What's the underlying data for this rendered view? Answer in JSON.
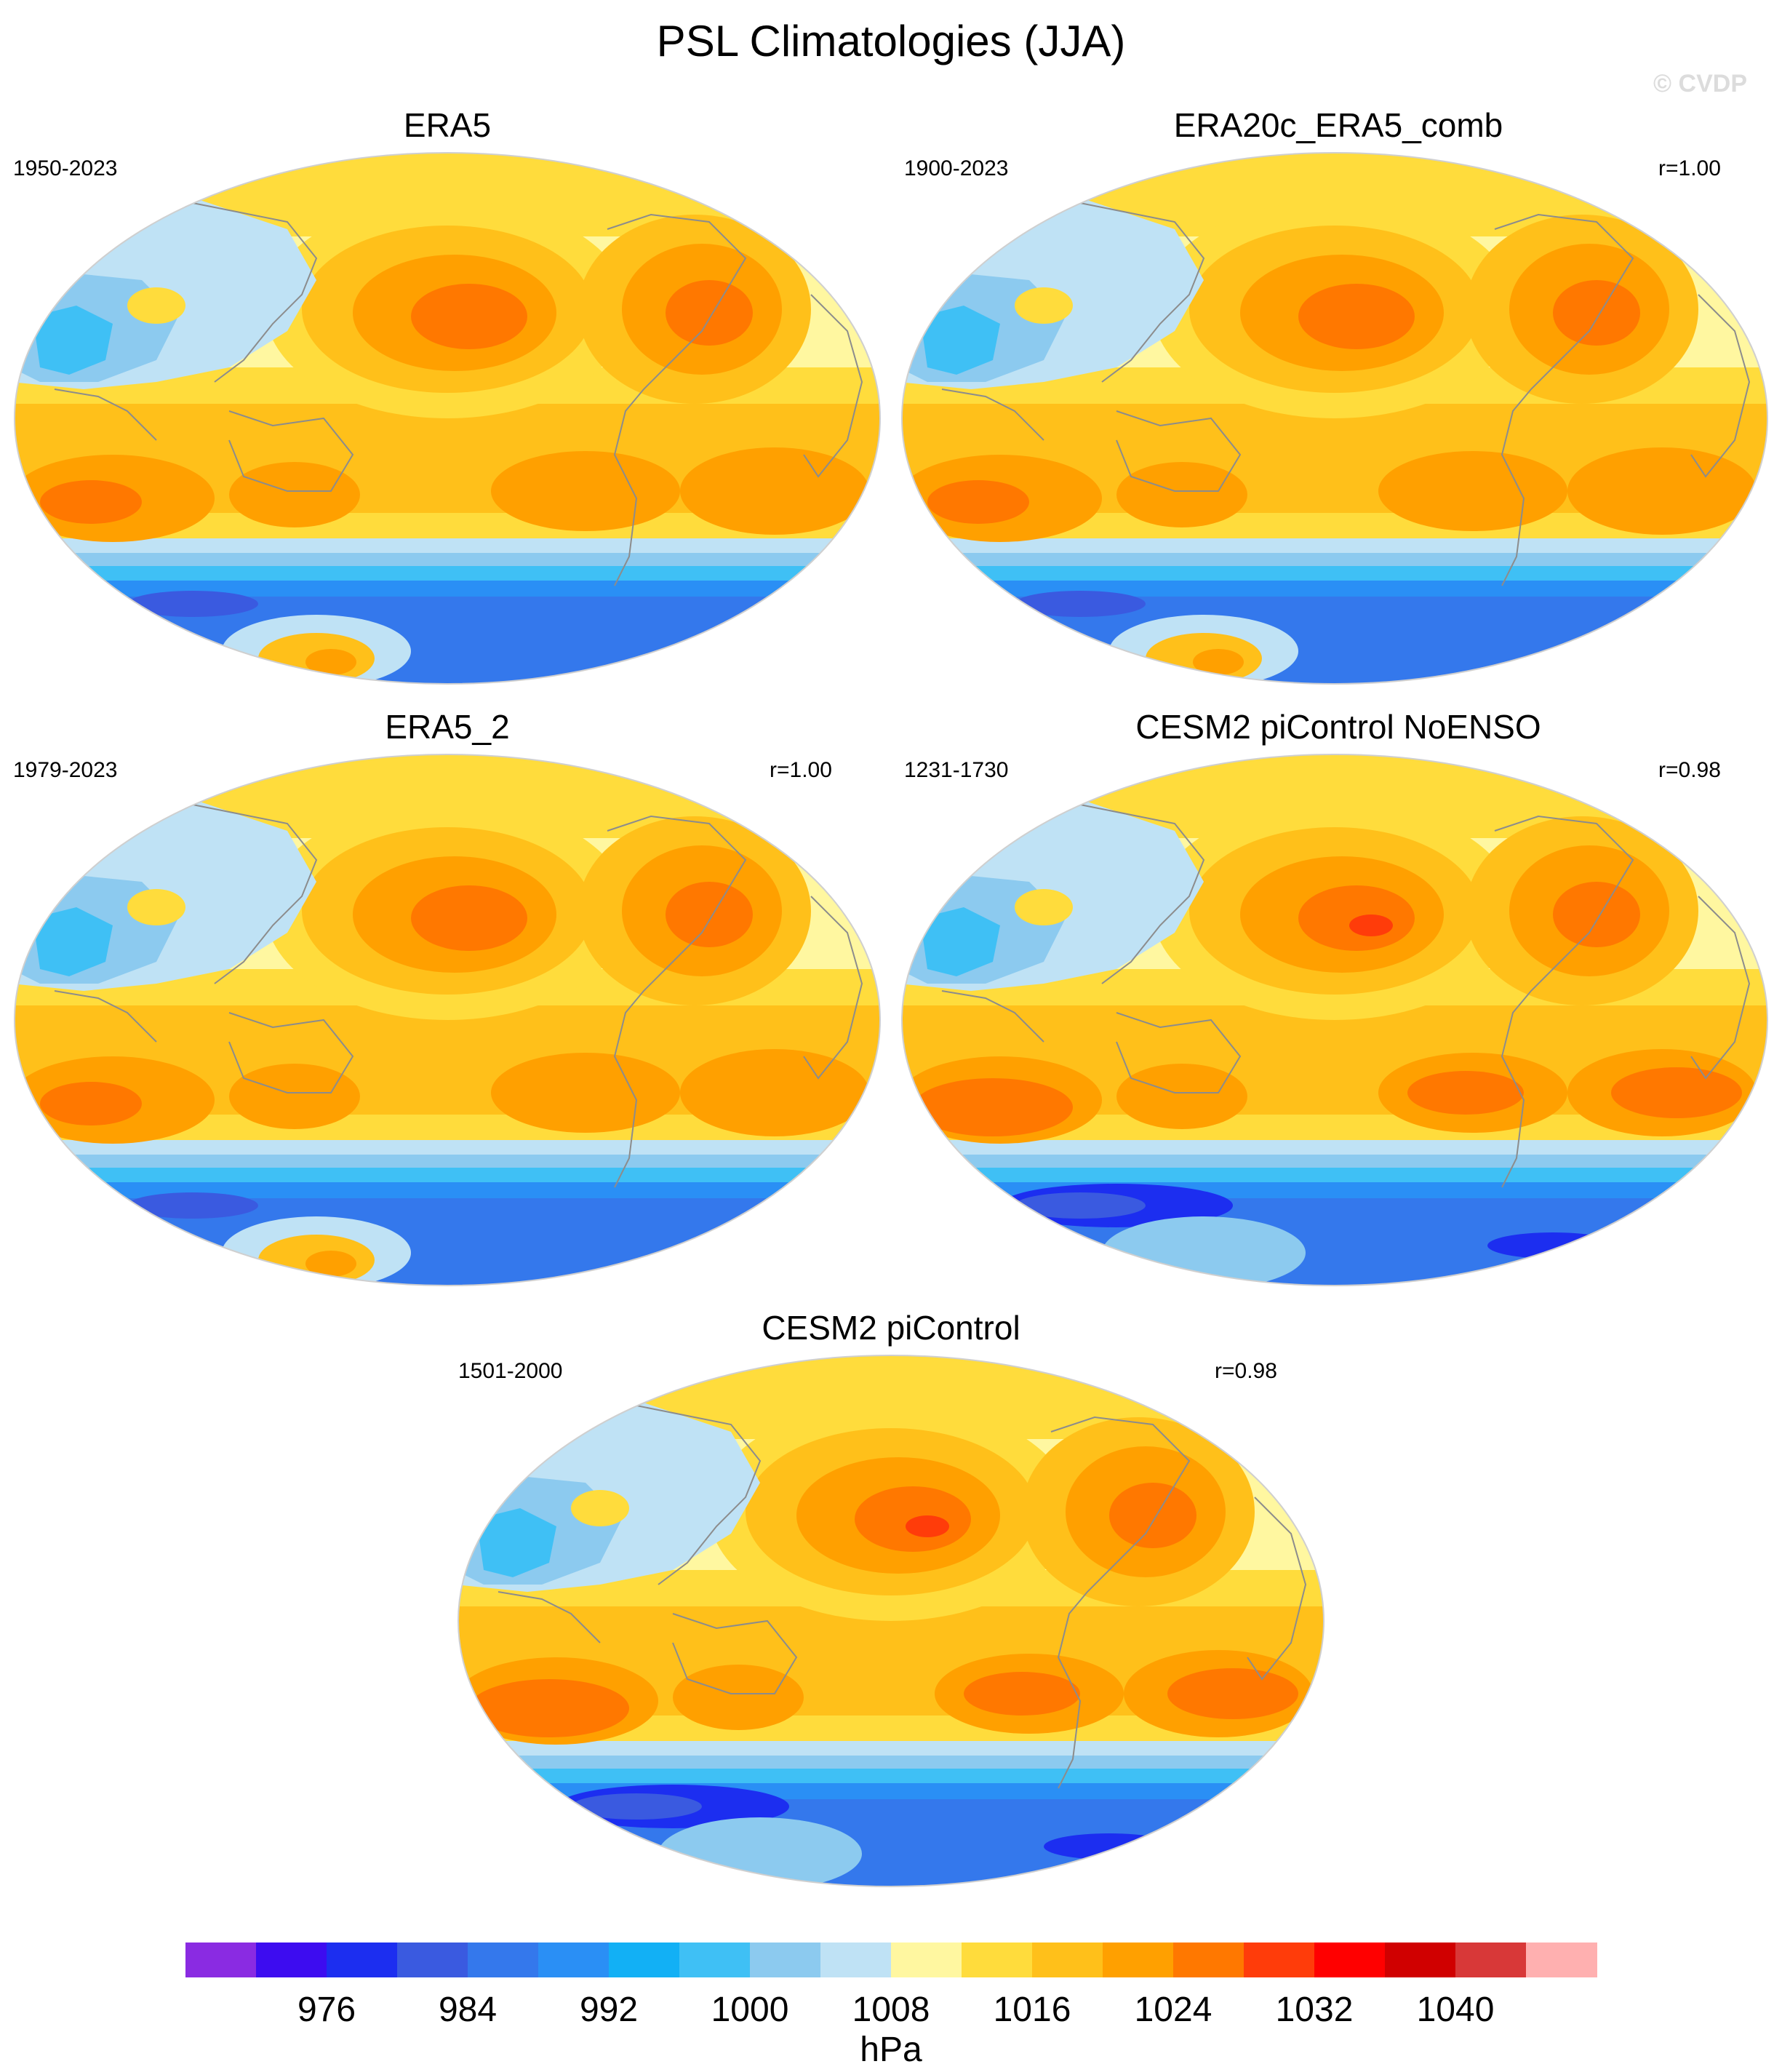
{
  "figure": {
    "title": "PSL Climatologies (JJA)",
    "watermark": "© CVDP"
  },
  "panels": [
    {
      "title": "ERA5",
      "period": "1950-2023",
      "corr": ""
    },
    {
      "title": "ERA20c_ERA5_comb",
      "period": "1900-2023",
      "corr": "r=1.00"
    },
    {
      "title": "ERA5_2",
      "period": "1979-2023",
      "corr": "r=1.00"
    },
    {
      "title": "CESM2 piControl NoENSO",
      "period": "1231-1730",
      "corr": "r=0.98"
    },
    {
      "title": "CESM2 piControl",
      "period": "1501-2000",
      "corr": "r=0.98"
    }
  ],
  "colorbar": {
    "units": "hPa",
    "tick_labels": [
      "976",
      "984",
      "992",
      "1000",
      "1008",
      "1016",
      "1024",
      "1032",
      "1040"
    ],
    "colors": [
      "#8a2be2",
      "#3d0cf0",
      "#1c2ef0",
      "#3a5ae0",
      "#3478ec",
      "#2a8ff5",
      "#12b0f5",
      "#3fc0f5",
      "#8ccaef",
      "#bfe2f5",
      "#fff7a0",
      "#ffdc3c",
      "#ffc01a",
      "#ffa000",
      "#ff7800",
      "#ff3c0a",
      "#ff0000",
      "#d00000",
      "#d83838",
      "#ffb0b0"
    ]
  },
  "map_palette": {
    "pale_yellow": "#fff7a0",
    "yellow": "#ffdc3c",
    "gold": "#ffc01a",
    "orange": "#ffa000",
    "dark_orange": "#ff7800",
    "red_orange": "#ff3c0a",
    "pale_blue": "#bfe2f5",
    "light_blue": "#8ccaef",
    "sky_blue": "#3fc0f5",
    "blue": "#2a8ff5",
    "mid_blue": "#3478ec",
    "deep_blue": "#3a5ae0",
    "indigo": "#1c2ef0"
  }
}
